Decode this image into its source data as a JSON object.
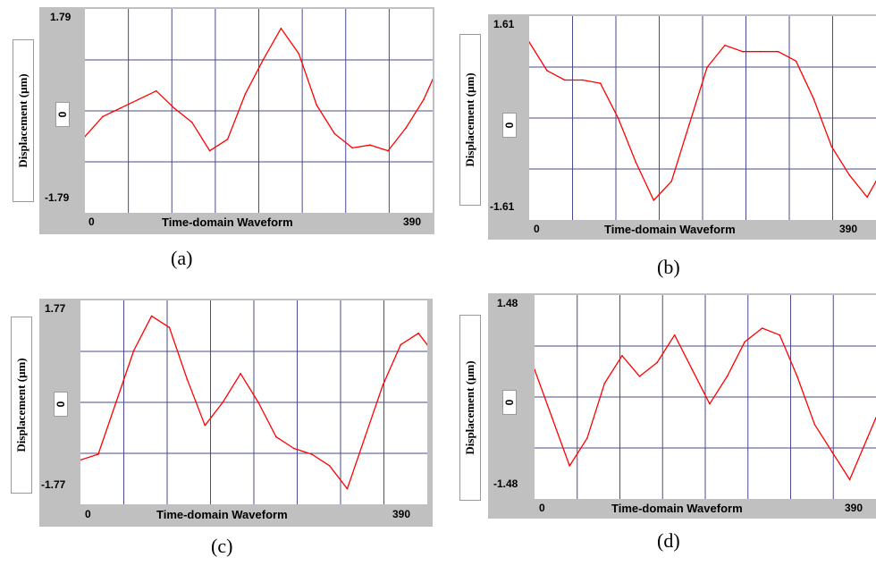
{
  "panels": [
    {
      "id": "a",
      "caption": "(a)"
    },
    {
      "id": "b",
      "caption": "(b)"
    },
    {
      "id": "c",
      "caption": "(c)"
    },
    {
      "id": "d",
      "caption": "(d)"
    }
  ],
  "chart_data": [
    {
      "type": "line",
      "panel": "(a)",
      "title": "Time-domain Waveform",
      "xlabel": "Time-domain Waveform",
      "ylabel": "Displacement (μm)",
      "x_tick_labels": [
        "0",
        "390"
      ],
      "y_tick_labels": [
        "1.79",
        "0",
        "-1.79"
      ],
      "xlim": [
        0,
        390
      ],
      "ylim": [
        -1.79,
        1.79
      ],
      "grid": true,
      "line_color": "#ff0000",
      "series": [
        {
          "x": [
            0,
            20,
            40,
            60,
            80,
            100,
            120,
            140,
            160,
            180,
            200,
            220,
            240,
            260,
            280,
            300,
            320,
            340,
            360,
            380,
            390
          ],
          "values": [
            -0.45,
            -0.1,
            0.05,
            0.2,
            0.35,
            0.05,
            -0.2,
            -0.7,
            -0.5,
            0.3,
            0.9,
            1.45,
            1.0,
            0.1,
            -0.4,
            -0.65,
            -0.6,
            -0.7,
            -0.3,
            0.2,
            0.55
          ]
        }
      ]
    },
    {
      "type": "line",
      "panel": "(b)",
      "title": "Time-domain Waveform",
      "xlabel": "Time-domain Waveform",
      "ylabel": "Displacement (μm)",
      "x_tick_labels": [
        "0",
        "390"
      ],
      "y_tick_labels": [
        "1.61",
        "0",
        "-1.61"
      ],
      "xlim": [
        0,
        390
      ],
      "ylim": [
        -1.61,
        1.61
      ],
      "grid": true,
      "line_color": "#ff0000",
      "series": [
        {
          "x": [
            0,
            20,
            40,
            60,
            80,
            100,
            120,
            140,
            160,
            180,
            200,
            220,
            240,
            260,
            280,
            300,
            320,
            340,
            360,
            380,
            390
          ],
          "values": [
            1.2,
            0.75,
            0.6,
            0.6,
            0.55,
            0.0,
            -0.7,
            -1.3,
            -1.0,
            -0.1,
            0.8,
            1.15,
            1.05,
            1.05,
            1.05,
            0.9,
            0.3,
            -0.45,
            -0.9,
            -1.25,
            -1.0
          ]
        }
      ]
    },
    {
      "type": "line",
      "panel": "(c)",
      "title": "Time-domain Waveform",
      "xlabel": "Time-domain Waveform",
      "ylabel": "Displacement (μm)",
      "x_tick_labels": [
        "0",
        "390"
      ],
      "y_tick_labels": [
        "1.77",
        "0",
        "-1.77"
      ],
      "xlim": [
        0,
        390
      ],
      "ylim": [
        -1.77,
        1.77
      ],
      "grid": true,
      "line_color": "#ff0000",
      "series": [
        {
          "x": [
            0,
            20,
            40,
            60,
            80,
            100,
            120,
            140,
            160,
            180,
            200,
            220,
            240,
            260,
            280,
            300,
            320,
            340,
            360,
            380,
            390
          ],
          "values": [
            -1.0,
            -0.9,
            0.0,
            0.9,
            1.5,
            1.3,
            0.4,
            -0.4,
            0.0,
            0.5,
            0.0,
            -0.6,
            -0.8,
            -0.9,
            -1.1,
            -1.5,
            -0.6,
            0.3,
            1.0,
            1.2,
            1.0
          ]
        }
      ]
    },
    {
      "type": "line",
      "panel": "(d)",
      "title": "Time-domain Waveform",
      "xlabel": "Time-domain Waveform",
      "ylabel": "Displacement (μm)",
      "x_tick_labels": [
        "0",
        "390"
      ],
      "y_tick_labels": [
        "1.48",
        "0",
        "-1.48"
      ],
      "xlim": [
        0,
        390
      ],
      "ylim": [
        -1.48,
        1.48
      ],
      "grid": true,
      "line_color": "#ff0000",
      "series": [
        {
          "x": [
            0,
            20,
            40,
            60,
            80,
            100,
            120,
            140,
            160,
            180,
            200,
            220,
            240,
            260,
            280,
            300,
            320,
            340,
            360,
            380,
            390
          ],
          "values": [
            0.4,
            -0.3,
            -1.0,
            -0.6,
            0.2,
            0.6,
            0.3,
            0.5,
            0.9,
            0.4,
            -0.1,
            0.3,
            0.8,
            1.0,
            0.9,
            0.3,
            -0.4,
            -0.8,
            -1.2,
            -0.6,
            -0.3
          ]
        }
      ]
    }
  ]
}
